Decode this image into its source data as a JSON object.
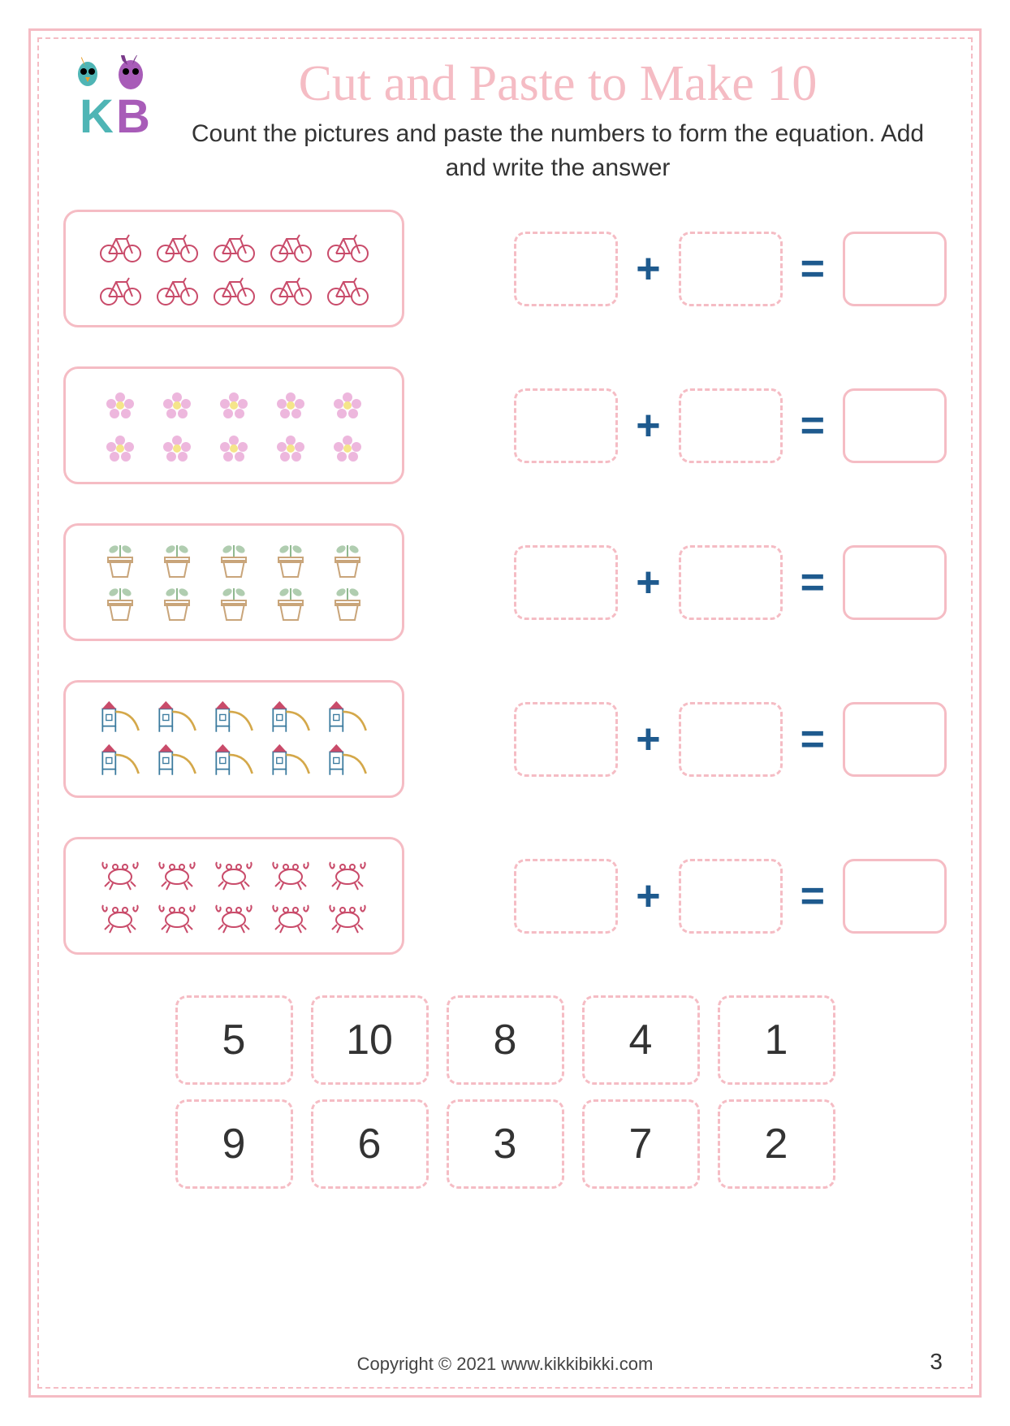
{
  "title": "Cut and Paste to Make 10",
  "instructions": "Count the pictures and paste the numbers to form the equation. Add and write the answer",
  "colors": {
    "border": "#f5bcc4",
    "title": "#f5bcc4",
    "operator": "#1e5a8e",
    "text": "#333333",
    "background": "#ffffff"
  },
  "operator_plus": "+",
  "operator_equals": "=",
  "problems": [
    {
      "icon_type": "bicycle",
      "row1_count": 5,
      "row2_count": 5,
      "icon_color": "#c94b6a"
    },
    {
      "icon_type": "flower",
      "row1_count": 5,
      "row2_count": 5,
      "icon_color": "#e8a5d4"
    },
    {
      "icon_type": "plant-pot",
      "row1_count": 5,
      "row2_count": 5,
      "icon_color": "#8fb88f"
    },
    {
      "icon_type": "playground",
      "row1_count": 5,
      "row2_count": 5,
      "icon_color": "#d4a84a"
    },
    {
      "icon_type": "crab",
      "row1_count": 5,
      "row2_count": 5,
      "icon_color": "#c94b6a"
    }
  ],
  "number_cards": {
    "row1": [
      "5",
      "10",
      "8",
      "4",
      "1"
    ],
    "row2": [
      "9",
      "6",
      "3",
      "7",
      "2"
    ]
  },
  "footer_text": "Copyright © 2021 www.kikkibikki.com",
  "page_number": "3",
  "logo": {
    "letter_k": "K",
    "letter_b": "B",
    "k_color": "#4fb5b5",
    "b_color": "#a85cb8"
  }
}
